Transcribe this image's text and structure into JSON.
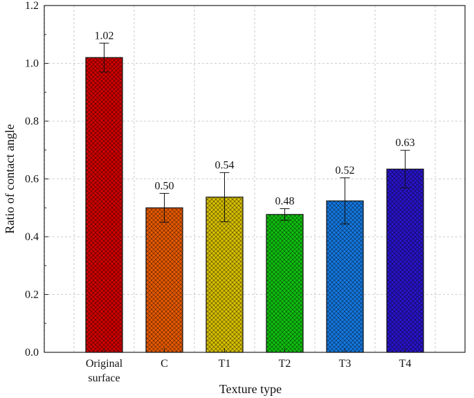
{
  "chart_data": {
    "type": "bar",
    "title": "",
    "xlabel": "Texture type",
    "ylabel": "Ratio of contact angle",
    "categories": [
      [
        "Original",
        "surface"
      ],
      [
        "C"
      ],
      [
        "T1"
      ],
      [
        "T2"
      ],
      [
        "T3"
      ],
      [
        "T4"
      ]
    ],
    "values": [
      1.02,
      0.5,
      0.537,
      0.477,
      0.524,
      0.634
    ],
    "errors": [
      0.05,
      0.05,
      0.085,
      0.02,
      0.08,
      0.065
    ],
    "data_labels": [
      "1.02",
      "0.50",
      "0.54",
      "0.48",
      "0.52",
      "0.63"
    ],
    "ylim": [
      0,
      1.2
    ],
    "yticks": [
      0.0,
      0.2,
      0.4,
      0.6,
      0.8,
      1.0,
      1.2
    ],
    "ytick_labels": [
      "0.0",
      "0.2",
      "0.4",
      "0.6",
      "0.8",
      "1.0",
      "1.2"
    ],
    "grid": true,
    "legend": "none",
    "colors": [
      "#d00000",
      "#e85a00",
      "#d8c000",
      "#10c010",
      "#1478e0",
      "#2814c8"
    ],
    "pattern": "crosshatch"
  }
}
